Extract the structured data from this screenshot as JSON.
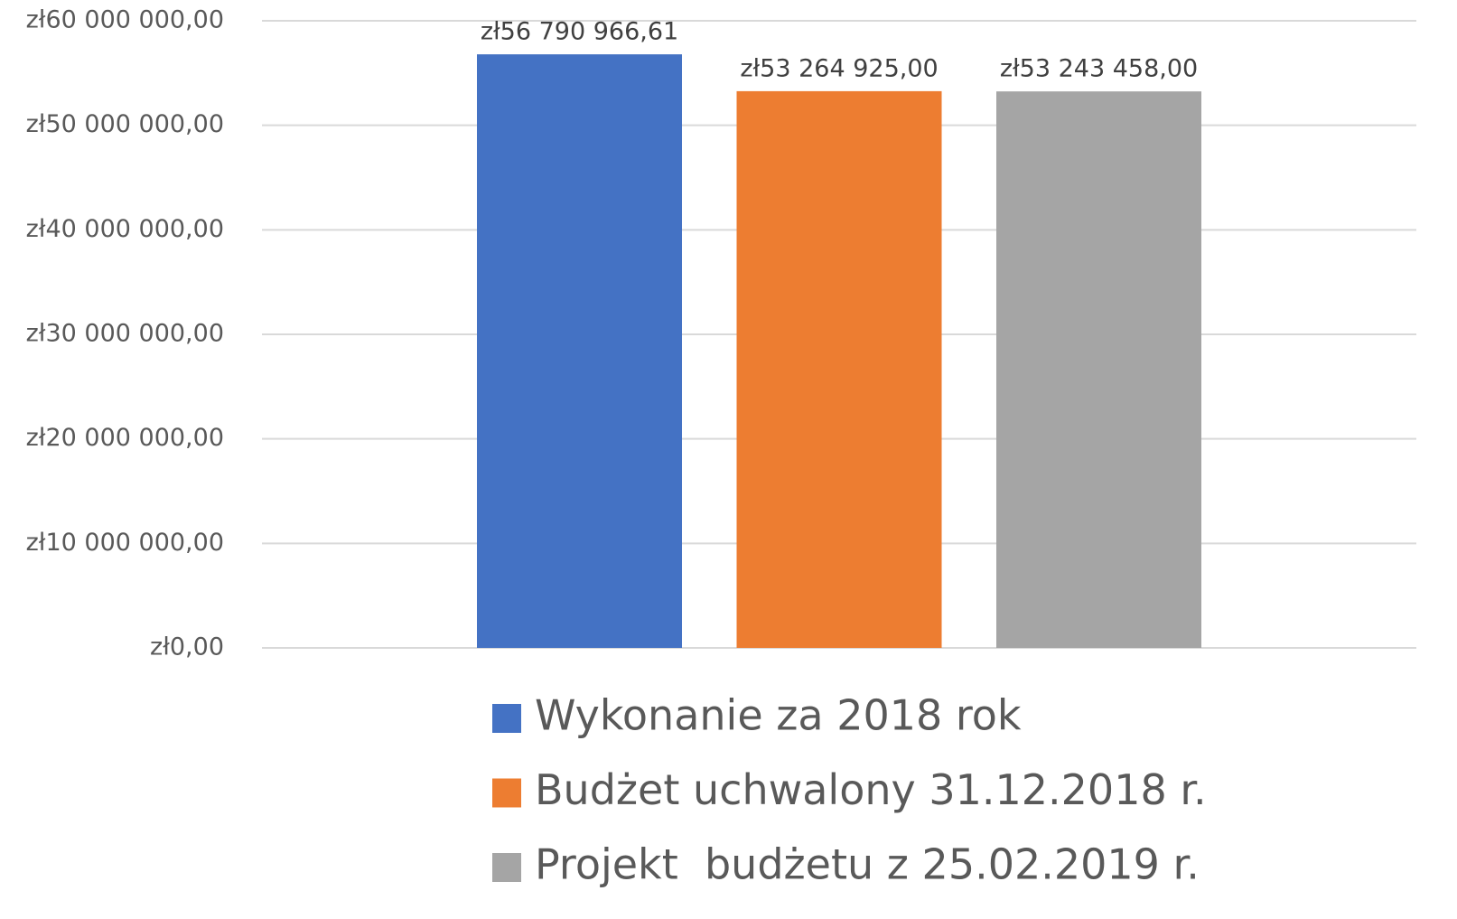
{
  "chart_data": {
    "type": "bar",
    "categories": [
      null
    ],
    "series": [
      {
        "name": "Wykonanie za 2018 rok",
        "color": "#4472c4",
        "values": [
          56790966.61
        ],
        "value_labels": [
          "zł56 790 966,61"
        ]
      },
      {
        "name": "Budżet uchwalony 31.12.2018 r.",
        "color": "#ed7d31",
        "values": [
          53264925.0
        ],
        "value_labels": [
          "zł53 264 925,00"
        ]
      },
      {
        "name": "Projekt  budżetu z 25.02.2019 r.",
        "color": "#a5a5a5",
        "values": [
          53243458.0
        ],
        "value_labels": [
          "zł53 243 458,00"
        ]
      }
    ],
    "ylim": [
      0,
      60000000
    ],
    "yticks": [
      {
        "value": 0,
        "label": "zł0,00"
      },
      {
        "value": 10000000,
        "label": "zł10 000 000,00"
      },
      {
        "value": 20000000,
        "label": "zł20 000 000,00"
      },
      {
        "value": 30000000,
        "label": "zł30 000 000,00"
      },
      {
        "value": 40000000,
        "label": "zł40 000 000,00"
      },
      {
        "value": 50000000,
        "label": "zł50 000 000,00"
      },
      {
        "value": 60000000,
        "label": "zł60 000 000,00"
      }
    ],
    "grid": true,
    "legend": "bottom"
  }
}
